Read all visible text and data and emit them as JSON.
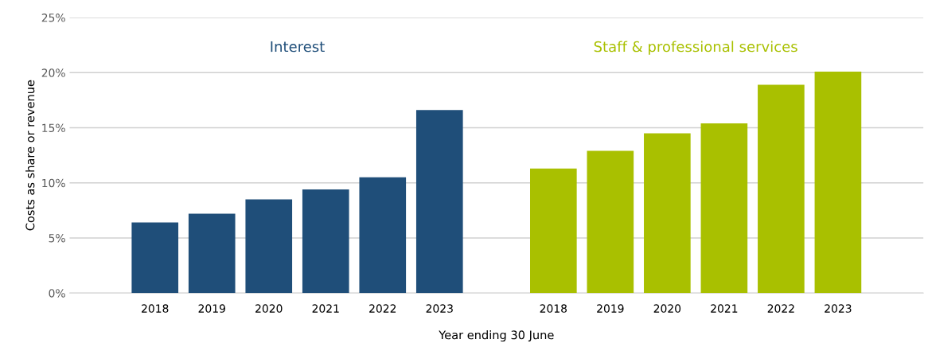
{
  "chart_data": {
    "type": "bar",
    "xlabel": "Year ending 30 June",
    "ylabel": "Costs as share or revenue",
    "categories": [
      null,
      "2018",
      "2019",
      "2020",
      "2021",
      "2022",
      "2023",
      null,
      "2018",
      "2019",
      "2020",
      "2021",
      "2022",
      "2023",
      null
    ],
    "series": [
      {
        "name": "Interest",
        "color": "#1f4e79",
        "values": [
          null,
          6.4,
          7.2,
          8.5,
          9.4,
          10.5,
          16.6,
          null,
          null,
          null,
          null,
          null,
          null,
          null,
          null
        ]
      },
      {
        "name": "Staff & professional services",
        "color": "#a9c000",
        "values": [
          null,
          null,
          null,
          null,
          null,
          null,
          null,
          null,
          11.3,
          12.9,
          14.5,
          15.4,
          18.9,
          20.1,
          null
        ]
      }
    ],
    "ylim": [
      0,
      25
    ],
    "yticks": [
      {
        "value": 0,
        "label": "0%"
      },
      {
        "value": 5,
        "label": "5%"
      },
      {
        "value": 10,
        "label": "10%"
      },
      {
        "value": 15,
        "label": "15%"
      },
      {
        "value": 20,
        "label": "20%"
      },
      {
        "value": 25,
        "label": "25%"
      }
    ],
    "grid": "y",
    "legend": false
  }
}
